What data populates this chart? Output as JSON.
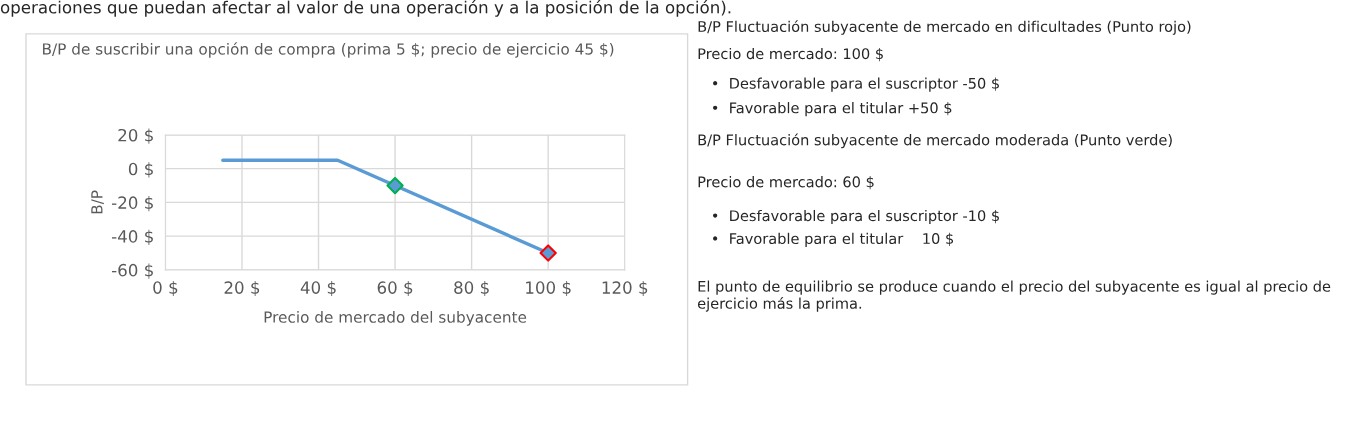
{
  "chart_data": {
    "type": "line",
    "title": "B/P de suscribir una opción de compra (prima 5 $; precio de ejercicio 45 $)",
    "xlabel": "Precio de mercado del subyacente",
    "ylabel": "B/P",
    "series": [
      {
        "color": "#5b9bd5",
        "x": [
          15,
          45,
          100
        ],
        "values": [
          5,
          5,
          -50
        ]
      },
      {
        "type": "scatter",
        "color": "#5b9bd5",
        "colors": [
          "#00b050",
          "#ff0000"
        ],
        "marker": "diamond",
        "x": [
          60,
          100
        ],
        "values": [
          -10,
          -50
        ]
      }
    ],
    "xlim": [
      0,
      120
    ],
    "xticks": [
      {
        "value": 0,
        "label": "0 $"
      },
      {
        "value": 20,
        "label": "20 $"
      },
      {
        "value": 40,
        "label": "40 $"
      },
      {
        "value": 60,
        "label": "60 $"
      },
      {
        "value": 80,
        "label": "80 $"
      },
      {
        "value": 100,
        "label": "100 $"
      },
      {
        "value": 120,
        "label": "120 $"
      }
    ],
    "ylim": [
      -60,
      20
    ],
    "yticks": [
      {
        "value": -60,
        "label": "-60 $"
      },
      {
        "value": -40,
        "label": "-40 $"
      },
      {
        "value": -20,
        "label": "-20 $"
      },
      {
        "value": 0,
        "label": "0 $"
      },
      {
        "value": 20,
        "label": "20 $"
      }
    ],
    "grid": true,
    "annotations": [
      "operaciones que puedan afectar al valor de una operación y a la posición de la opción).",
      "B/P Fluctuación subyacente de mercado en dificultades (Punto rojo)",
      "Precio de mercado: 100 $",
      "•  Desfavorable para el suscriptor -50 $",
      "•  Favorable para el titular +50 $",
      "B/P Fluctuación subyacente de mercado moderada (Punto verde)",
      "Precio de mercado: 60 $",
      "•  Desfavorable para el suscriptor -10 $",
      "•  Favorable para el titular    10 $",
      "El punto de equilibrio se produce cuando el precio del subyacente es igual al precio de ejercicio más la prima."
    ]
  }
}
